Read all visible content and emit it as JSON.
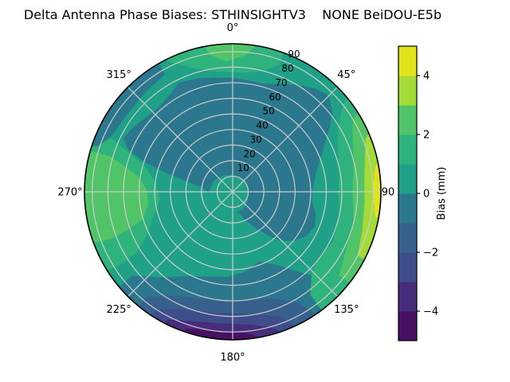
{
  "chart_data": {
    "type": "polar_contour",
    "title": "Delta Antenna Phase Biases: STHINSIGHTV3    NONE BeiDOU-E5b",
    "units": "mm",
    "rmax": 95,
    "grid": true,
    "angle_ticks": [
      {
        "angle": 0,
        "label": "0°"
      },
      {
        "angle": 45,
        "label": "45°"
      },
      {
        "angle": 90,
        "label": "90"
      },
      {
        "angle": 135,
        "label": "135°"
      },
      {
        "angle": 180,
        "label": "180°"
      },
      {
        "angle": 225,
        "label": "225°"
      },
      {
        "angle": 270,
        "label": "270°"
      },
      {
        "angle": 315,
        "label": "315°"
      }
    ],
    "radial_ticks": [
      10,
      20,
      30,
      40,
      50,
      60,
      70,
      80,
      90
    ],
    "radial_tick_label_angle_deg": 24,
    "colorbar": {
      "label": "Bias (mm)",
      "vmin": -5,
      "vmax": 5,
      "band_step": 1,
      "tick_values": [
        4,
        2,
        0,
        -2,
        -4
      ],
      "tick_labels": [
        "4",
        "2",
        "0",
        "−2",
        "−4"
      ]
    },
    "palette_bands": [
      {
        "range": [
          -5,
          -4
        ],
        "color": "#471063"
      },
      {
        "range": [
          -4,
          -3
        ],
        "color": "#472d7b"
      },
      {
        "range": [
          -3,
          -2
        ],
        "color": "#3e4e8a"
      },
      {
        "range": [
          -2,
          -1
        ],
        "color": "#36618d"
      },
      {
        "range": [
          -1,
          0
        ],
        "color": "#2b788e"
      },
      {
        "range": [
          0,
          1
        ],
        "color": "#1fa188"
      },
      {
        "range": [
          1,
          2
        ],
        "color": "#2eb37c"
      },
      {
        "range": [
          2,
          3
        ],
        "color": "#52c468"
      },
      {
        "range": [
          3,
          4
        ],
        "color": "#a5db36"
      },
      {
        "range": [
          4,
          5
        ],
        "color": "#e0e418"
      }
    ],
    "base_band": [
      0,
      1
    ],
    "regions": [
      {
        "name": "bottom-blueteal-arc",
        "band": [
          -1,
          0
        ],
        "points": [
          [
            133,
            95
          ],
          [
            143,
            95
          ],
          [
            153,
            95
          ],
          [
            163,
            95
          ],
          [
            173,
            95
          ],
          [
            183,
            95
          ],
          [
            193,
            95
          ],
          [
            203,
            95
          ],
          [
            213,
            95
          ],
          [
            222,
            95
          ],
          [
            230,
            95
          ],
          [
            230,
            84
          ],
          [
            220,
            72
          ],
          [
            209,
            62
          ],
          [
            197,
            57
          ],
          [
            184,
            55
          ],
          [
            171,
            52
          ],
          [
            159,
            48
          ],
          [
            149,
            55
          ],
          [
            141,
            66
          ],
          [
            134,
            80
          ]
        ]
      },
      {
        "name": "bottom-steelblue",
        "band": [
          -2,
          -1
        ],
        "points": [
          [
            146,
            95
          ],
          [
            156,
            95
          ],
          [
            166,
            95
          ],
          [
            176,
            95
          ],
          [
            186,
            95
          ],
          [
            196,
            95
          ],
          [
            206,
            95
          ],
          [
            219,
            95
          ],
          [
            219,
            87
          ],
          [
            210,
            77
          ],
          [
            198,
            72
          ],
          [
            184,
            70
          ],
          [
            170,
            70
          ],
          [
            158,
            74
          ],
          [
            150,
            82
          ]
        ]
      },
      {
        "name": "bottom-slate",
        "band": [
          -3,
          -2
        ],
        "points": [
          [
            155,
            95
          ],
          [
            165,
            95
          ],
          [
            175,
            95
          ],
          [
            185,
            95
          ],
          [
            195,
            95
          ],
          [
            205,
            95
          ],
          [
            213,
            95
          ],
          [
            213,
            90
          ],
          [
            203,
            82
          ],
          [
            191,
            79
          ],
          [
            179,
            78
          ],
          [
            168,
            81
          ],
          [
            159,
            86
          ]
        ]
      },
      {
        "name": "bottom-purple",
        "band": [
          -4,
          -3
        ],
        "points": [
          [
            161,
            95
          ],
          [
            171,
            95
          ],
          [
            181,
            95
          ],
          [
            191,
            95
          ],
          [
            199,
            95
          ],
          [
            207,
            95
          ],
          [
            207,
            92
          ],
          [
            197,
            87
          ],
          [
            185,
            85
          ],
          [
            173,
            86
          ],
          [
            165,
            90
          ]
        ]
      },
      {
        "name": "bottom-deep-purple",
        "band": [
          -5,
          -4
        ],
        "points": [
          [
            170,
            95
          ],
          [
            180,
            95
          ],
          [
            190,
            95
          ],
          [
            199,
            95
          ],
          [
            199,
            93
          ],
          [
            189,
            90
          ],
          [
            179,
            90
          ],
          [
            173,
            92
          ]
        ]
      },
      {
        "name": "top-green-arc",
        "band": [
          1,
          2
        ],
        "points": [
          [
            333,
            95
          ],
          [
            342,
            95
          ],
          [
            351,
            95
          ],
          [
            0,
            95
          ],
          [
            10,
            95
          ],
          [
            20,
            95
          ],
          [
            20,
            87
          ],
          [
            14,
            80
          ],
          [
            6,
            77
          ],
          [
            358,
            77
          ],
          [
            350,
            79
          ],
          [
            342,
            84
          ],
          [
            336,
            90
          ]
        ]
      },
      {
        "name": "top-lightgreen-wedge",
        "band": [
          2,
          3
        ],
        "points": [
          [
            349,
            95
          ],
          [
            356,
            95
          ],
          [
            3,
            95
          ],
          [
            9,
            95
          ],
          [
            5,
            88
          ],
          [
            357,
            84
          ],
          [
            351,
            89
          ]
        ]
      },
      {
        "name": "east-green-band",
        "band": [
          1,
          2
        ],
        "points": [
          [
            50,
            95
          ],
          [
            60,
            95
          ],
          [
            70,
            95
          ],
          [
            80,
            95
          ],
          [
            90,
            95
          ],
          [
            100,
            95
          ],
          [
            110,
            95
          ],
          [
            120,
            95
          ],
          [
            130,
            95
          ],
          [
            143,
            95
          ],
          [
            143,
            83
          ],
          [
            136,
            73
          ],
          [
            128,
            70
          ],
          [
            116,
            72
          ],
          [
            102,
            70
          ],
          [
            90,
            68
          ],
          [
            78,
            70
          ],
          [
            66,
            74
          ],
          [
            58,
            80
          ],
          [
            53,
            88
          ]
        ]
      },
      {
        "name": "east-lightgreen-band",
        "band": [
          2,
          3
        ],
        "points": [
          [
            58,
            95
          ],
          [
            68,
            95
          ],
          [
            78,
            95
          ],
          [
            88,
            95
          ],
          [
            98,
            95
          ],
          [
            108,
            95
          ],
          [
            118,
            95
          ],
          [
            128,
            95
          ],
          [
            128,
            87
          ],
          [
            118,
            82
          ],
          [
            104,
            80
          ],
          [
            90,
            77
          ],
          [
            76,
            80
          ],
          [
            65,
            85
          ],
          [
            59,
            90
          ]
        ]
      },
      {
        "name": "east-yellowgreen-band",
        "band": [
          3,
          4
        ],
        "points": [
          [
            67,
            95
          ],
          [
            77,
            95
          ],
          [
            87,
            95
          ],
          [
            97,
            95
          ],
          [
            107,
            95
          ],
          [
            117,
            95
          ],
          [
            117,
            90
          ],
          [
            107,
            87
          ],
          [
            95,
            85
          ],
          [
            84,
            85
          ],
          [
            75,
            88
          ],
          [
            68,
            92
          ]
        ]
      },
      {
        "name": "east-yellow-sliver",
        "band": [
          4,
          5
        ],
        "points": [
          [
            79,
            95
          ],
          [
            89,
            95
          ],
          [
            100,
            95
          ],
          [
            100,
            93
          ],
          [
            90,
            90
          ],
          [
            80,
            93
          ]
        ]
      },
      {
        "name": "west-green-patch",
        "band": [
          1,
          2
        ],
        "points": [
          [
            238,
            95
          ],
          [
            248,
            95
          ],
          [
            258,
            95
          ],
          [
            268,
            95
          ],
          [
            278,
            95
          ],
          [
            288,
            95
          ],
          [
            294,
            95
          ],
          [
            294,
            87
          ],
          [
            287,
            60
          ],
          [
            277,
            50
          ],
          [
            264,
            47
          ],
          [
            252,
            54
          ],
          [
            243,
            62
          ],
          [
            238,
            72
          ],
          [
            237,
            84
          ]
        ]
      },
      {
        "name": "west-lightgreen-patch",
        "band": [
          2,
          3
        ],
        "points": [
          [
            250,
            95
          ],
          [
            259,
            95
          ],
          [
            268,
            95
          ],
          [
            277,
            95
          ],
          [
            286,
            95
          ],
          [
            286,
            81
          ],
          [
            279,
            61
          ],
          [
            271,
            55
          ],
          [
            261,
            55
          ],
          [
            253,
            61
          ],
          [
            250,
            72
          ],
          [
            249,
            84
          ]
        ]
      },
      {
        "name": "nw-rim-arc",
        "band": [
          -1,
          0
        ],
        "points": [
          [
            288,
            95
          ],
          [
            298,
            95
          ],
          [
            308,
            95
          ],
          [
            318,
            95
          ],
          [
            330,
            95
          ],
          [
            330,
            87
          ],
          [
            318,
            85
          ],
          [
            306,
            84
          ],
          [
            294,
            86
          ],
          [
            289,
            91
          ]
        ]
      },
      {
        "name": "central-dark-blob",
        "band": [
          -1,
          0
        ],
        "points": [
          [
            250,
            14
          ],
          [
            260,
            14
          ],
          [
            270,
            16
          ],
          [
            278,
            19
          ],
          [
            283,
            30
          ],
          [
            286,
            45
          ],
          [
            289,
            60
          ],
          [
            292,
            72
          ],
          [
            296,
            78
          ],
          [
            303,
            76
          ],
          [
            311,
            73
          ],
          [
            319,
            72
          ],
          [
            327,
            74
          ],
          [
            334,
            78
          ],
          [
            343,
            76
          ],
          [
            351,
            74
          ],
          [
            0,
            73
          ],
          [
            8,
            72
          ],
          [
            16,
            72
          ],
          [
            23,
            75
          ],
          [
            31,
            80
          ],
          [
            39,
            85
          ],
          [
            45,
            87
          ],
          [
            51,
            82
          ],
          [
            56,
            75
          ],
          [
            61,
            68
          ],
          [
            67,
            62
          ],
          [
            73,
            57
          ],
          [
            81,
            53
          ],
          [
            89,
            51
          ],
          [
            97,
            51
          ],
          [
            105,
            55
          ],
          [
            113,
            57
          ],
          [
            121,
            55
          ],
          [
            129,
            50
          ],
          [
            135,
            44
          ],
          [
            141,
            36
          ],
          [
            147,
            28
          ],
          [
            153,
            22
          ],
          [
            159,
            17
          ],
          [
            166,
            13
          ],
          [
            174,
            10
          ],
          [
            184,
            9
          ],
          [
            196,
            8
          ],
          [
            210,
            8
          ],
          [
            224,
            8
          ],
          [
            238,
            10
          ],
          [
            246,
            12
          ]
        ]
      },
      {
        "name": "center-teal-patch",
        "band": [
          0,
          1
        ],
        "points": [
          [
            0,
            11
          ],
          [
            30,
            10
          ],
          [
            60,
            10
          ],
          [
            90,
            10
          ],
          [
            120,
            11
          ],
          [
            150,
            13
          ],
          [
            180,
            14
          ],
          [
            210,
            15
          ],
          [
            240,
            15
          ],
          [
            270,
            15
          ],
          [
            300,
            14
          ],
          [
            330,
            12
          ]
        ]
      }
    ]
  }
}
